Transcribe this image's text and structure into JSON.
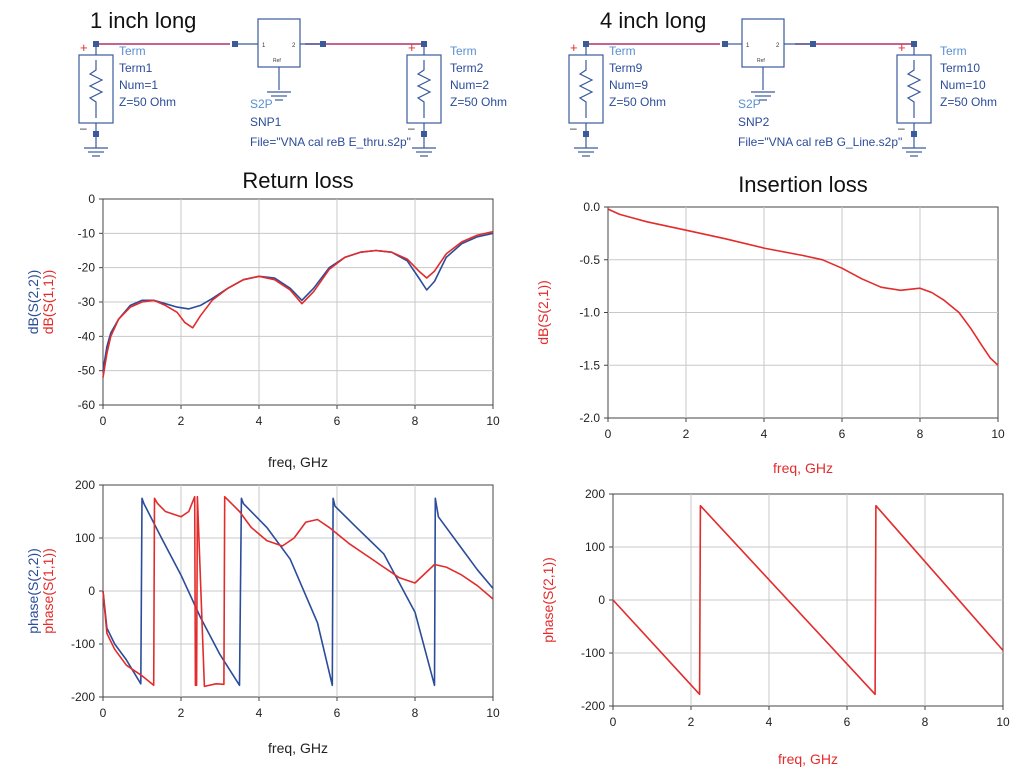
{
  "schematics": [
    {
      "title": "1 inch long",
      "port1": {
        "kind": "Term",
        "name": "Term1",
        "num": "Num=1",
        "z": "Z=50 Ohm"
      },
      "port2": {
        "kind": "Term",
        "name": "Term2",
        "num": "Num=2",
        "z": "Z=50 Ohm"
      },
      "block": {
        "pin1": "1",
        "pin2": "2",
        "ref": "Ref",
        "kind": "S2P",
        "name": "SNP1",
        "file": "File=\"VNA cal reB E_thru.s2p\""
      }
    },
    {
      "title": "4 inch long",
      "port1": {
        "kind": "Term",
        "name": "Term9",
        "num": "Num=9",
        "z": "Z=50 Ohm"
      },
      "port2": {
        "kind": "Term",
        "name": "Term10",
        "num": "Num=10",
        "z": "Z=50 Ohm"
      },
      "block": {
        "pin1": "1",
        "pin2": "2",
        "ref": "Ref",
        "kind": "S2P",
        "name": "SNP2",
        "file": "File=\"VNA cal reB G_Line.s2p\""
      }
    }
  ],
  "colors": {
    "blue": "#2b4c9a",
    "red": "#e32b2b",
    "term_blue": "#5b8fcf",
    "wire": "#b0306a",
    "grid": "#c8c8c8",
    "text": "#222222"
  },
  "chart_data": [
    {
      "id": "return-loss",
      "type": "line",
      "title": "Return loss",
      "xlabel": "freq, GHz",
      "ylabel_parts": [
        {
          "text": "dB(S(2,2))",
          "color": "#2b4c9a"
        },
        {
          "text": "dB(S(1,1))",
          "color": "#e32b2b"
        }
      ],
      "xlim": [
        0,
        10
      ],
      "ylim": [
        -60,
        0
      ],
      "xticks": [
        0,
        2,
        4,
        6,
        8,
        10
      ],
      "yticks": [
        0,
        -10,
        -20,
        -30,
        -40,
        -50,
        -60
      ],
      "ytick_labels": [
        "0",
        "-10",
        "-20",
        "-30",
        "-40",
        "-50",
        "-60"
      ],
      "grid": true,
      "series": [
        {
          "name": "dB(S(2,2))",
          "color": "#2b4c9a",
          "x": [
            0,
            0.1,
            0.2,
            0.4,
            0.7,
            1.0,
            1.3,
            1.6,
            1.9,
            2.2,
            2.5,
            2.8,
            3.2,
            3.6,
            4.0,
            4.4,
            4.8,
            5.1,
            5.4,
            5.8,
            6.2,
            6.6,
            7.0,
            7.4,
            7.8,
            8.1,
            8.3,
            8.5,
            8.8,
            9.2,
            9.6,
            10
          ],
          "y": [
            -50,
            -43,
            -39,
            -35,
            -31,
            -29.5,
            -29.5,
            -30.5,
            -31.5,
            -32,
            -31,
            -29,
            -26,
            -23.5,
            -22.5,
            -23,
            -26,
            -29.5,
            -26,
            -20,
            -17,
            -15.5,
            -15,
            -15.5,
            -18,
            -23,
            -26.5,
            -24,
            -17,
            -13,
            -11,
            -10
          ]
        },
        {
          "name": "dB(S(1,1))",
          "color": "#e32b2b",
          "x": [
            0,
            0.1,
            0.2,
            0.4,
            0.7,
            1.0,
            1.3,
            1.6,
            1.9,
            2.1,
            2.3,
            2.5,
            2.8,
            3.2,
            3.6,
            4.0,
            4.4,
            4.8,
            5.1,
            5.4,
            5.8,
            6.2,
            6.6,
            7.0,
            7.4,
            7.8,
            8.1,
            8.3,
            8.5,
            8.8,
            9.2,
            9.6,
            10
          ],
          "y": [
            -52,
            -45,
            -40,
            -35,
            -31.5,
            -30,
            -29.5,
            -31,
            -33,
            -36,
            -37.5,
            -34,
            -29.5,
            -26,
            -23.5,
            -22.5,
            -23.5,
            -26.5,
            -30.5,
            -27,
            -20.5,
            -17,
            -15.5,
            -15,
            -15.5,
            -17.5,
            -21,
            -23,
            -21,
            -16,
            -12.5,
            -10.5,
            -9.5
          ]
        }
      ]
    },
    {
      "id": "insertion-loss",
      "type": "line",
      "title": "Insertion loss",
      "xlabel": "freq, GHz",
      "xlabel_color": "#e32b2b",
      "ylabel_parts": [
        {
          "text": "dB(S(2,1))",
          "color": "#e32b2b"
        }
      ],
      "xlim": [
        0,
        10
      ],
      "ylim": [
        -2.0,
        0.0
      ],
      "xticks": [
        0,
        2,
        4,
        6,
        8,
        10
      ],
      "yticks": [
        0.0,
        -0.5,
        -1.0,
        -1.5,
        -2.0
      ],
      "ytick_labels": [
        "0.0",
        "-0.5",
        "-1.0",
        "-1.5",
        "-2.0"
      ],
      "grid": true,
      "series": [
        {
          "name": "dB(S(2,1))",
          "color": "#e32b2b",
          "x": [
            0,
            0.3,
            1.0,
            2.0,
            3.0,
            4.0,
            5.0,
            5.5,
            6.0,
            6.5,
            7.0,
            7.5,
            8.0,
            8.3,
            8.6,
            9.0,
            9.3,
            9.6,
            9.8,
            10
          ],
          "y": [
            -0.02,
            -0.07,
            -0.14,
            -0.22,
            -0.3,
            -0.39,
            -0.46,
            -0.5,
            -0.58,
            -0.68,
            -0.76,
            -0.79,
            -0.77,
            -0.81,
            -0.88,
            -1.0,
            -1.15,
            -1.32,
            -1.43,
            -1.5
          ]
        }
      ]
    },
    {
      "id": "phase-reflection",
      "type": "line",
      "title": "",
      "xlabel": "freq, GHz",
      "ylabel_parts": [
        {
          "text": "phase(S(2,2))",
          "color": "#2b4c9a"
        },
        {
          "text": "phase(S(1,1))",
          "color": "#e32b2b"
        }
      ],
      "xlim": [
        0,
        10
      ],
      "ylim": [
        -200,
        200
      ],
      "xticks": [
        0,
        2,
        4,
        6,
        8,
        10
      ],
      "yticks": [
        200,
        100,
        0,
        -100,
        -200
      ],
      "ytick_labels": [
        "200",
        "100",
        "0",
        "-100",
        "-200"
      ],
      "grid": true,
      "series": [
        {
          "name": "phase(S(2,2))",
          "color": "#2b4c9a",
          "x": [
            0,
            0.1,
            0.3,
            0.6,
            0.97,
            1.0,
            1.05,
            1.5,
            2.0,
            2.5,
            3.0,
            3.5,
            3.55,
            3.6,
            4.2,
            4.8,
            5.5,
            5.88,
            5.9,
            5.95,
            6.5,
            7.2,
            8.0,
            8.5,
            8.52,
            8.6,
            9.2,
            9.6,
            10
          ],
          "y": [
            0,
            -70,
            -100,
            -130,
            -175,
            175,
            165,
            100,
            30,
            -50,
            -120,
            -178,
            175,
            165,
            120,
            60,
            -60,
            -178,
            175,
            160,
            120,
            70,
            -40,
            -178,
            175,
            140,
            80,
            40,
            5
          ]
        },
        {
          "name": "phase(S(1,1))",
          "color": "#e32b2b",
          "x": [
            0,
            0.1,
            0.3,
            0.6,
            1.0,
            1.3,
            1.32,
            1.4,
            1.6,
            1.8,
            2.0,
            2.2,
            2.35,
            2.37,
            2.4,
            2.42,
            2.6,
            2.9,
            3.1,
            3.12,
            3.2,
            3.5,
            3.8,
            4.2,
            4.6,
            4.9,
            5.2,
            5.5,
            5.8,
            6.3,
            7.0,
            7.6,
            8.0,
            8.5,
            8.8,
            9.2,
            9.6,
            10
          ],
          "y": [
            0,
            -80,
            -110,
            -140,
            -160,
            -178,
            175,
            165,
            150,
            145,
            140,
            150,
            178,
            -178,
            -178,
            178,
            -180,
            -175,
            -176,
            178,
            172,
            150,
            120,
            95,
            85,
            100,
            130,
            135,
            120,
            90,
            55,
            25,
            15,
            50,
            45,
            30,
            10,
            -15
          ]
        }
      ]
    },
    {
      "id": "phase-transmission",
      "type": "line",
      "title": "",
      "xlabel": "freq, GHz",
      "xlabel_color": "#e32b2b",
      "ylabel_parts": [
        {
          "text": "phase(S(2,1))",
          "color": "#e32b2b"
        }
      ],
      "xlim": [
        0,
        10
      ],
      "ylim": [
        -200,
        200
      ],
      "xticks": [
        0,
        2,
        4,
        6,
        8,
        10
      ],
      "yticks": [
        200,
        100,
        0,
        -100,
        -200
      ],
      "ytick_labels": [
        "200",
        "100",
        "0",
        "-100",
        "-200"
      ],
      "grid": true,
      "series": [
        {
          "name": "phase(S(2,1))",
          "color": "#e32b2b",
          "x": [
            0,
            2.22,
            2.24,
            6.72,
            6.74,
            10
          ],
          "y": [
            0,
            -178,
            178,
            -178,
            178,
            -95
          ]
        }
      ]
    }
  ]
}
